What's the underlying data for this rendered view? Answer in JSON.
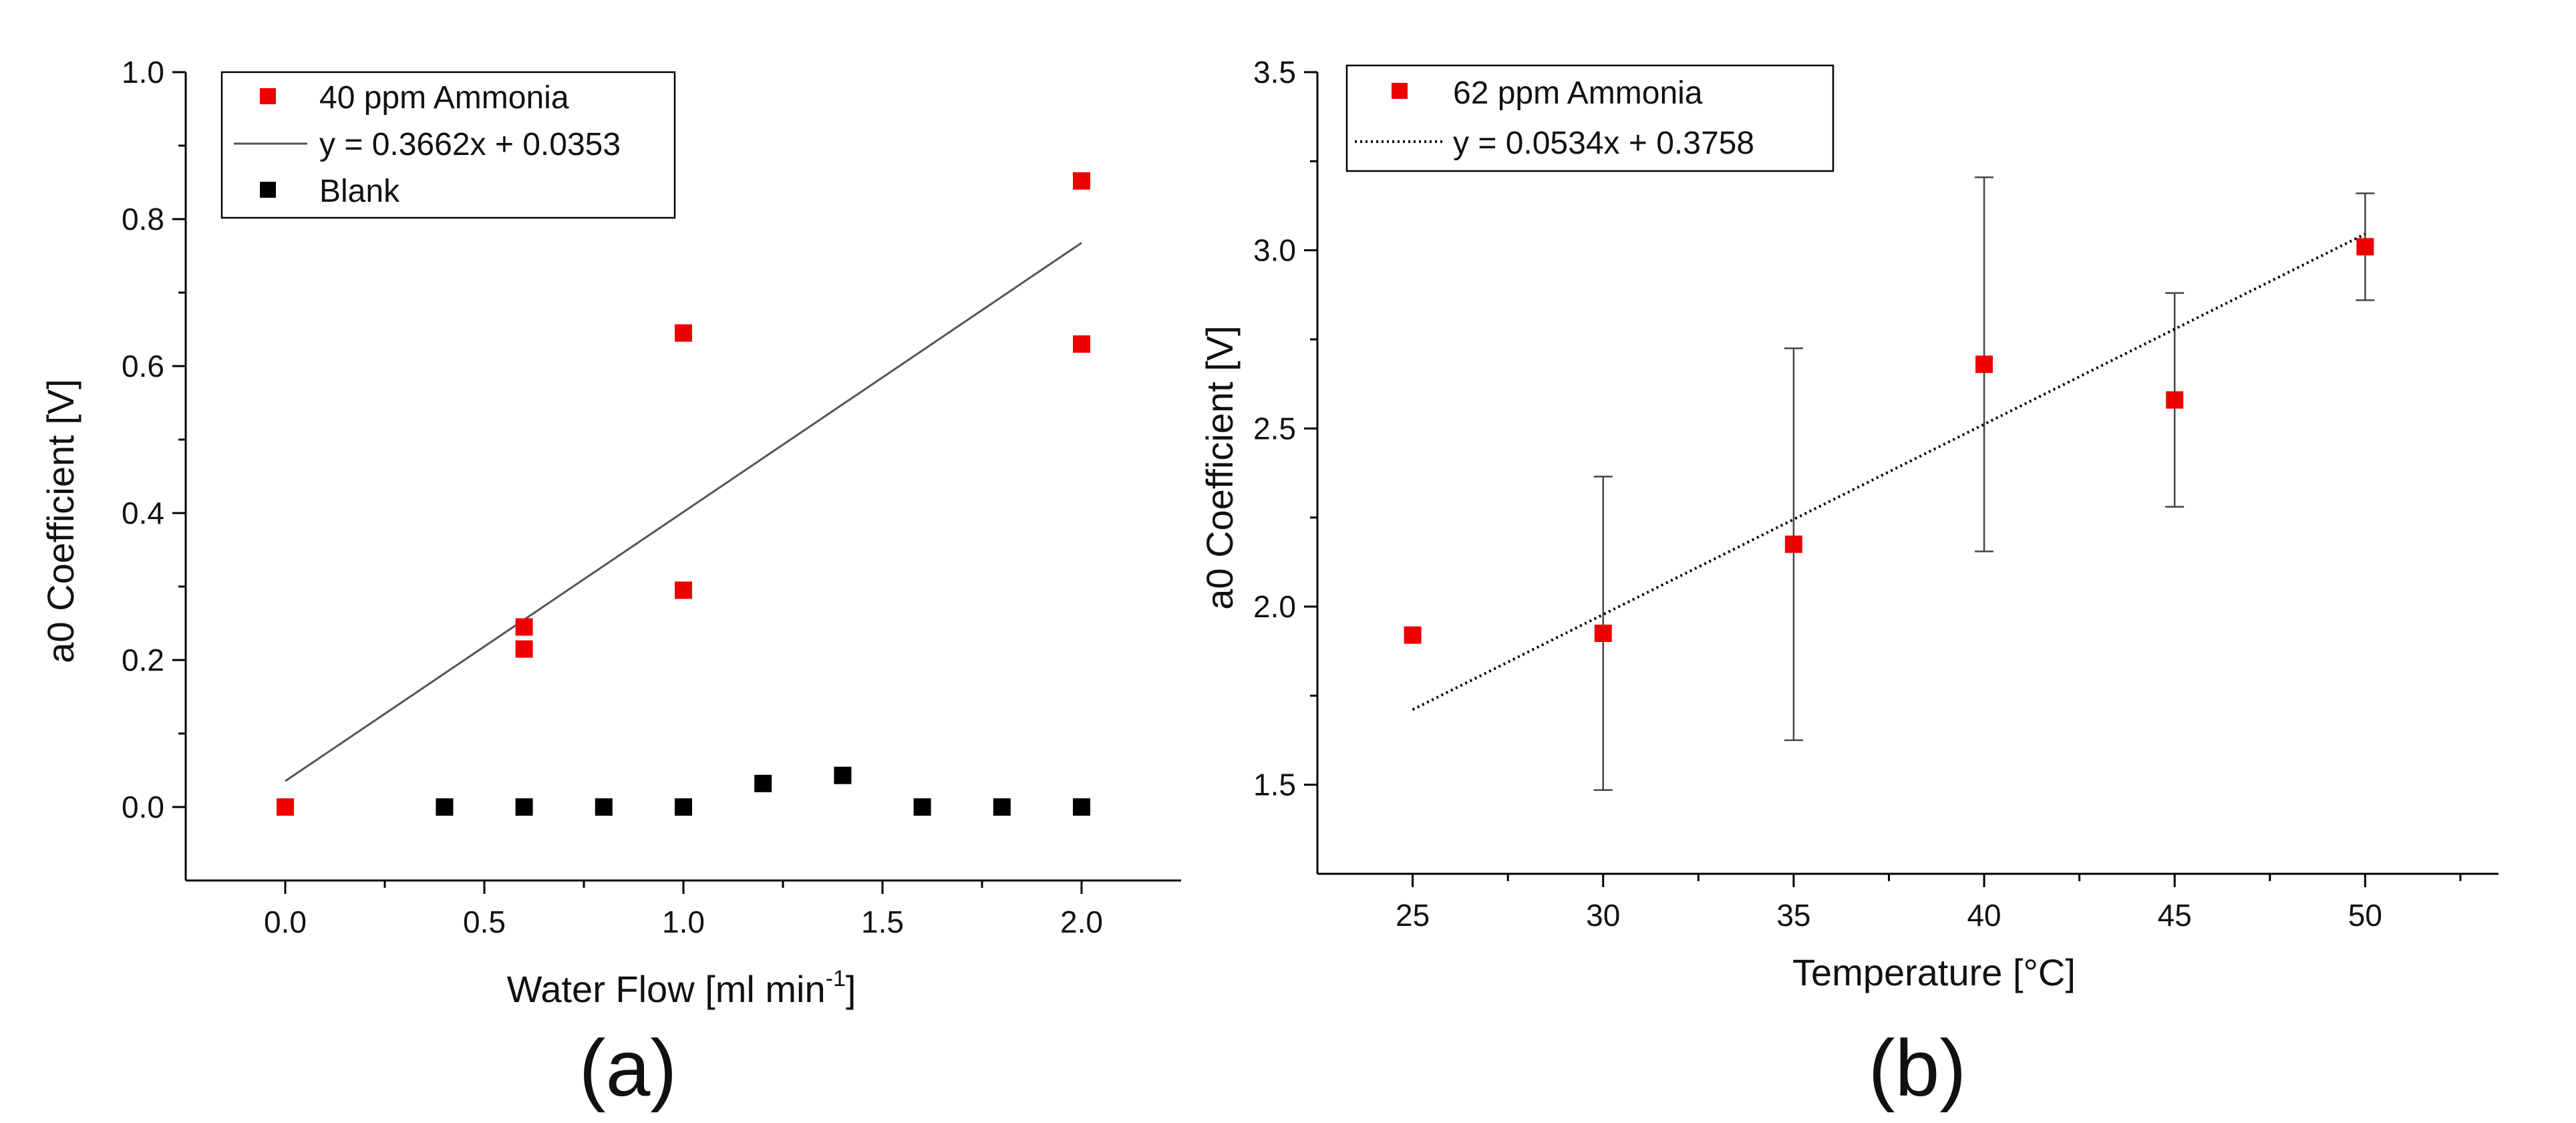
{
  "colors": {
    "ammonia": "#ee0000",
    "blank": "#000000",
    "axis": "#000000",
    "fit": "#555555",
    "errorbar": "#444444"
  },
  "chart_data": [
    {
      "type": "scatter",
      "panel_label": "(a)",
      "xlabel_main": "Water Flow [ml min",
      "xlabel_sup": "-1",
      "xlabel_end": "]",
      "ylabel": "a0 Coefficient [V]",
      "xlim": [
        -0.25,
        2.25
      ],
      "ylim": [
        -0.1,
        1.0
      ],
      "xticks": [
        0.0,
        0.5,
        1.0,
        1.5,
        2.0
      ],
      "xtick_labels": [
        "0.0",
        "0.5",
        "1.0",
        "1.5",
        "2.0"
      ],
      "yticks": [
        0.0,
        0.2,
        0.4,
        0.6,
        0.8,
        1.0
      ],
      "ytick_labels": [
        "0.0",
        "0.2",
        "0.4",
        "0.6",
        "0.8",
        "1.0"
      ],
      "legend_position": "top-left",
      "series": [
        {
          "name": "40 ppm Ammonia",
          "color": "#ee0000",
          "x": [
            0.0,
            0.6,
            0.6,
            1.0,
            1.0,
            2.0,
            2.0
          ],
          "y": [
            0.0,
            0.245,
            0.215,
            0.645,
            0.295,
            0.852,
            0.63
          ]
        },
        {
          "name": "Blank",
          "color": "#000000",
          "x": [
            0.4,
            0.6,
            0.8,
            1.0,
            1.2,
            1.4,
            1.6,
            1.8,
            2.0
          ],
          "y": [
            0.0,
            0.0,
            0.0,
            0.0,
            0.032,
            0.043,
            0.0,
            0.0,
            0.0
          ]
        }
      ],
      "fit": {
        "label": "y = 0.3662x + 0.0353",
        "slope": 0.3662,
        "intercept": 0.0353,
        "x_range": [
          0.0,
          2.0
        ],
        "style": "solid"
      }
    },
    {
      "type": "scatter",
      "panel_label": "(b)",
      "xlabel": "Temperature [°C]",
      "ylabel": "a0 Coefficient [V]",
      "xlim": [
        22.5,
        53.5
      ],
      "ylim": [
        1.25,
        3.5
      ],
      "xticks": [
        25,
        30,
        35,
        40,
        45,
        50
      ],
      "xtick_labels": [
        "25",
        "30",
        "35",
        "40",
        "45",
        "50"
      ],
      "yticks": [
        1.5,
        2.0,
        2.5,
        3.0,
        3.5
      ],
      "ytick_labels": [
        "1.5",
        "2.0",
        "2.5",
        "3.0",
        "3.5"
      ],
      "legend_position": "top-left",
      "series": [
        {
          "name": "62 ppm Ammonia",
          "color": "#ee0000",
          "x": [
            25,
            30,
            35,
            40,
            45,
            50
          ],
          "y": [
            1.92,
            1.925,
            2.175,
            2.68,
            2.58,
            3.01
          ],
          "err_low": [
            null,
            1.485,
            1.625,
            2.155,
            2.28,
            2.86
          ],
          "err_high": [
            null,
            2.365,
            2.725,
            3.205,
            2.88,
            3.16
          ]
        }
      ],
      "fit": {
        "label": "y = 0.0534x + 0.3758",
        "slope": 0.0534,
        "intercept": 0.3758,
        "x_range": [
          25,
          50
        ],
        "style": "dotted"
      }
    }
  ]
}
